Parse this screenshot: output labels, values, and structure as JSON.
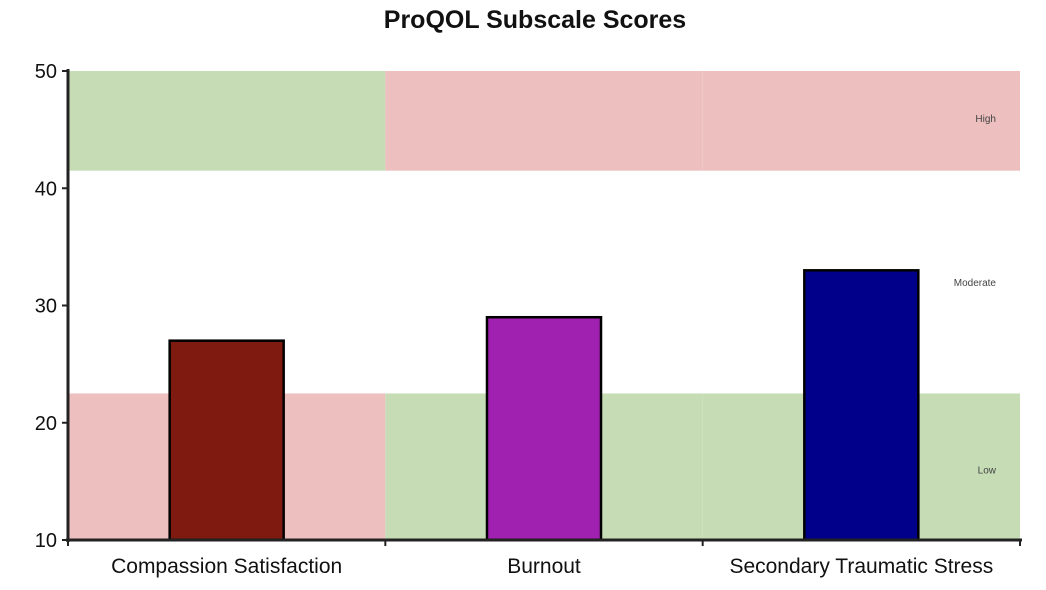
{
  "chart_data": {
    "type": "bar",
    "title": "ProQOL Subscale Scores",
    "xlabel": "",
    "ylabel": "",
    "ylim": [
      10,
      50
    ],
    "yticks": [
      10,
      20,
      30,
      40,
      50
    ],
    "categories": [
      "Compassion Satisfaction",
      "Burnout",
      "Secondary Traumatic Stress"
    ],
    "values": [
      27,
      29,
      33
    ],
    "bar_colors": [
      "#7f1a10",
      "#a020b0",
      "#00008b"
    ],
    "grid": false,
    "legend": "none",
    "bands": [
      {
        "category_index": 0,
        "range": [
          10,
          22.5
        ],
        "color": "#edbfbf"
      },
      {
        "category_index": 0,
        "range": [
          41.5,
          50
        ],
        "color": "#c5dcb5"
      },
      {
        "category_index": 1,
        "range": [
          10,
          22.5
        ],
        "color": "#c5dcb5"
      },
      {
        "category_index": 1,
        "range": [
          41.5,
          50
        ],
        "color": "#edbfbf"
      },
      {
        "category_index": 2,
        "range": [
          10,
          22.5
        ],
        "color": "#c5dcb5"
      },
      {
        "category_index": 2,
        "range": [
          41.5,
          50
        ],
        "color": "#edbfbf"
      }
    ],
    "band_labels": [
      {
        "text": "High",
        "y": 46
      },
      {
        "text": "Moderate",
        "y": 32
      },
      {
        "text": "Low",
        "y": 16
      }
    ]
  }
}
